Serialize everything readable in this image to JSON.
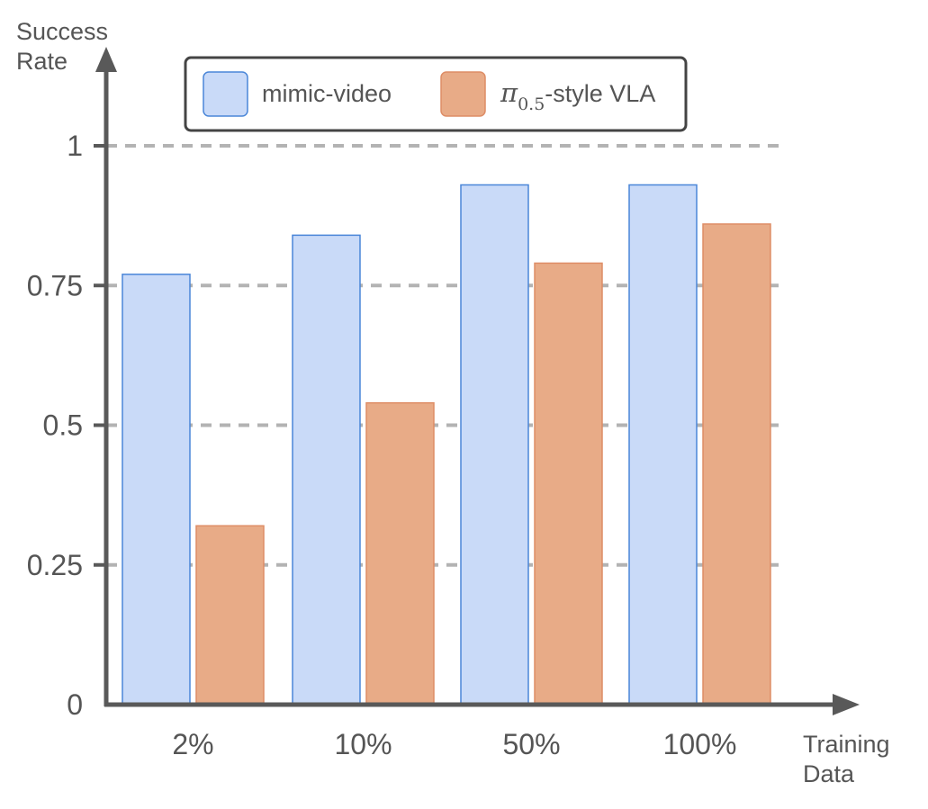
{
  "chart_data": {
    "type": "bar",
    "categories": [
      "2%",
      "10%",
      "50%",
      "100%"
    ],
    "series": [
      {
        "name": "mimic-video",
        "values": [
          0.77,
          0.84,
          0.93,
          0.93
        ],
        "fill": "#c9daf8",
        "stroke": "#4a86d8"
      },
      {
        "name_symbol": "π",
        "name_subscript": "0.5",
        "name_suffix": "-style VLA",
        "values": [
          0.32,
          0.54,
          0.79,
          0.86
        ],
        "fill": "#e8ab87",
        "stroke": "#de8d66"
      }
    ],
    "ylabel_lines": [
      "Success",
      "Rate"
    ],
    "xlabel_lines": [
      "Training",
      "Data"
    ],
    "ylim": [
      0,
      1
    ],
    "yticks": [
      0,
      0.25,
      0.5,
      0.75,
      1
    ],
    "ytick_labels": [
      "0",
      "0.25",
      "0.5",
      "0.75",
      "1"
    ],
    "grid": true,
    "legend_position": "top",
    "colors": {
      "axis": "#595959",
      "grid": "#b3b3b3",
      "text": "#555555",
      "legend_border": "#444444"
    }
  }
}
